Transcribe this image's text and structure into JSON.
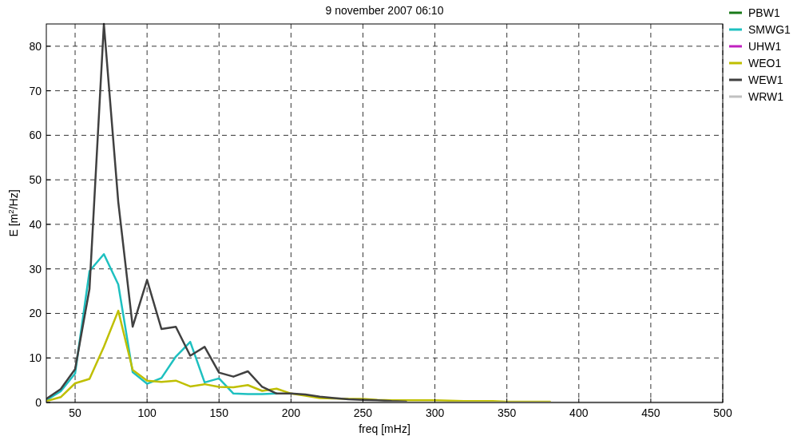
{
  "chart_data": {
    "type": "line",
    "title": "9 november 2007 06:10",
    "xlabel": "freq [mHz]",
    "ylabel": "E [m$^{2}$/Hz]",
    "x": [
      30,
      40,
      50,
      60,
      70,
      80,
      90,
      100,
      110,
      120,
      130,
      140,
      150,
      160,
      170,
      180,
      190,
      200,
      210,
      220,
      230,
      240,
      250,
      260,
      270,
      280,
      290,
      300,
      310,
      320,
      330,
      340,
      350,
      360,
      370,
      380,
      390,
      400,
      410,
      420,
      430,
      440,
      450,
      460,
      470,
      480,
      490,
      500
    ],
    "series": [
      {
        "name": "PBW1",
        "color": "#1a7a1a",
        "values": [
          null,
          null,
          null,
          null,
          null,
          null,
          null,
          null,
          null,
          null,
          null,
          null,
          null,
          null,
          null,
          null,
          null,
          null,
          null,
          null,
          null,
          null,
          null,
          null,
          null,
          null,
          null,
          null,
          null,
          null,
          null,
          null,
          null,
          null,
          null,
          null,
          null,
          null,
          null,
          null,
          null,
          null,
          null,
          null,
          null,
          null,
          null,
          null
        ]
      },
      {
        "name": "SMWG1",
        "color": "#1ec0c0",
        "values": [
          0.5,
          2.5,
          6.5,
          29.5,
          33.3,
          26.5,
          6.8,
          4.2,
          5.5,
          10.3,
          13.6,
          4.5,
          5.4,
          2,
          1.9,
          1.9,
          2,
          null,
          null,
          null,
          null,
          null,
          null,
          null,
          null,
          null,
          null,
          null,
          null,
          null,
          null,
          null,
          null,
          null,
          null,
          null,
          null,
          null,
          null,
          null,
          null,
          null,
          null,
          null,
          null,
          null,
          null,
          null
        ]
      },
      {
        "name": "UHW1",
        "color": "#c020c0",
        "values": [
          null,
          null,
          null,
          null,
          null,
          null,
          null,
          null,
          null,
          null,
          null,
          null,
          null,
          null,
          null,
          null,
          null,
          null,
          null,
          null,
          null,
          null,
          null,
          null,
          null,
          null,
          null,
          null,
          null,
          null,
          null,
          null,
          null,
          null,
          null,
          null,
          null,
          null,
          null,
          null,
          null,
          null,
          null,
          null,
          null,
          null,
          null,
          null
        ]
      },
      {
        "name": "WEO1",
        "color": "#bfbf00",
        "values": [
          0.3,
          1.2,
          4.3,
          5.3,
          12.5,
          20.6,
          7.3,
          4.9,
          4.6,
          4.9,
          3.6,
          4.1,
          3.5,
          3.4,
          3.9,
          2.6,
          3.1,
          2,
          1.5,
          1,
          0.9,
          0.8,
          0.8,
          0.6,
          0.5,
          0.5,
          0.5,
          0.5,
          0.4,
          0.3,
          0.3,
          0.3,
          0.2,
          0.2,
          0.2,
          0.2,
          null,
          null,
          null,
          null,
          null,
          null,
          null,
          null,
          null,
          null,
          null,
          null
        ]
      },
      {
        "name": "WEW1",
        "color": "#404040",
        "values": [
          0.8,
          3,
          7.5,
          25.5,
          85,
          45,
          17,
          27.5,
          16.5,
          17,
          10.5,
          12.5,
          6.7,
          5.8,
          7,
          3.5,
          2,
          2,
          1.8,
          1.3,
          1,
          0.7,
          0.6,
          0.5,
          0.3,
          0.2,
          null,
          null,
          null,
          null,
          null,
          null,
          null,
          null,
          null,
          null,
          null,
          null,
          null,
          null,
          null,
          null,
          null,
          null,
          null,
          null,
          null,
          null
        ]
      },
      {
        "name": "WRW1",
        "color": "#c0c0c0",
        "values": [
          0,
          0,
          0,
          0,
          0,
          0,
          0,
          0,
          0,
          0,
          0,
          0,
          0,
          0,
          0,
          0,
          0,
          0,
          0,
          0,
          0,
          0,
          0,
          0,
          0,
          0,
          0,
          0,
          0,
          0,
          0,
          0,
          0,
          0,
          0,
          0,
          0,
          0,
          0,
          0,
          0,
          0,
          0,
          0,
          0,
          0,
          0,
          0
        ]
      }
    ],
    "xlim": [
      30,
      500
    ],
    "ylim": [
      0,
      85
    ],
    "xticks": [
      50,
      100,
      150,
      200,
      250,
      300,
      350,
      400,
      450,
      500
    ],
    "yticks": [
      0,
      10,
      20,
      30,
      40,
      50,
      60,
      70,
      80
    ],
    "grid": true,
    "legend": "top right",
    "marker": "none",
    "line_style": "solid"
  }
}
